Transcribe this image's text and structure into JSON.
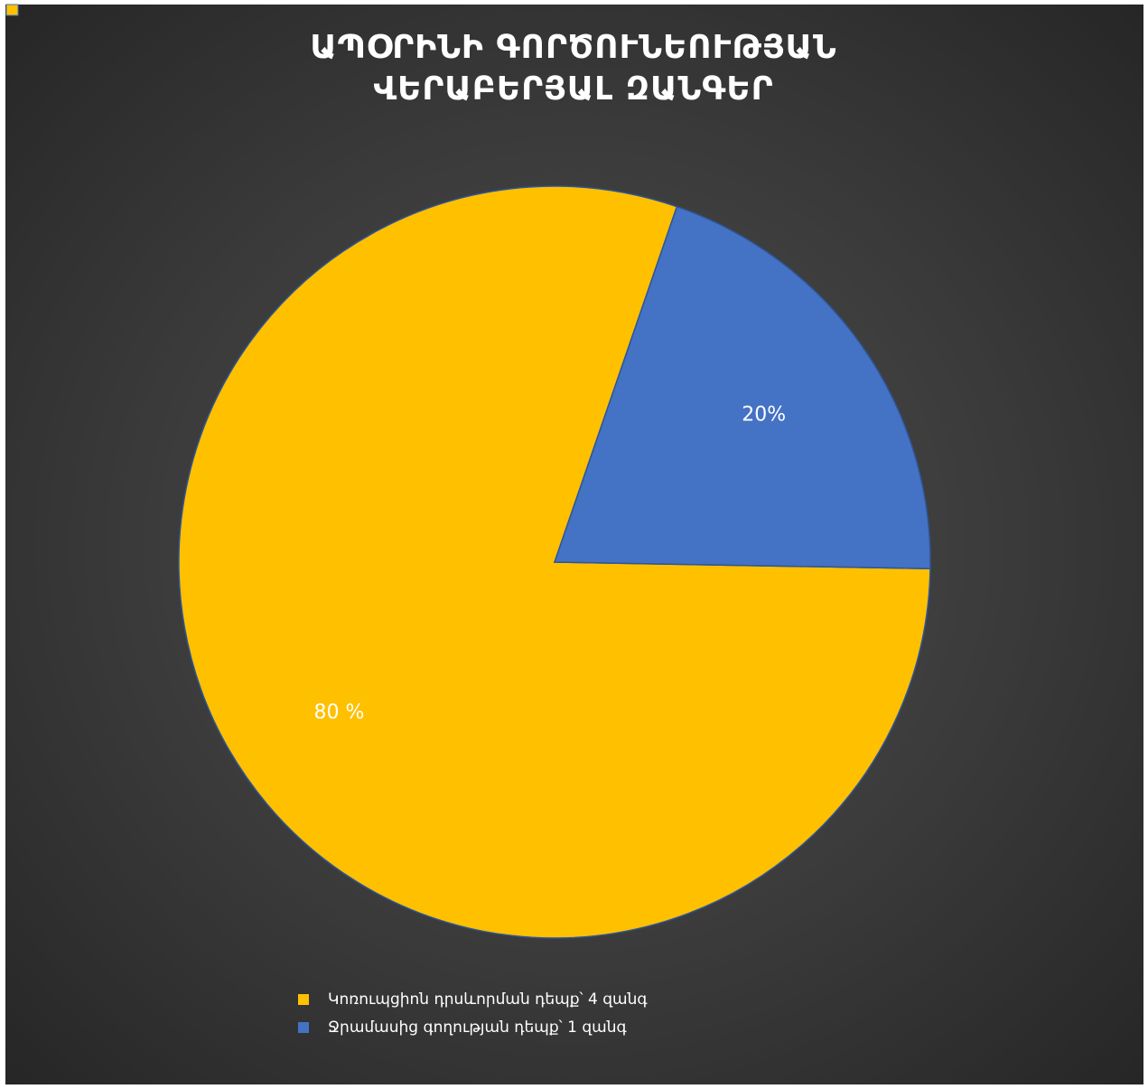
{
  "chart_data": {
    "type": "pie",
    "title": "ԱՊՕՐԻՆԻ ԳՈՐԾՈՒՆԵՈՒԹՅԱՆ ՎԵՐԱԲԵՐՅԱԼ ԶԱՆԳԵՐ",
    "series": [
      {
        "name": "Կոռուպցիոն դրսևորման դեպք՝ 4 զանգ",
        "color": "#ffc000",
        "values": [
          80
        ],
        "value_labels": [
          "80 %"
        ]
      },
      {
        "name": "Ջրամասից գողության դեպք՝ 1 զանգ",
        "color": "#4472c4",
        "values": [
          20
        ],
        "value_labels": [
          "20%"
        ]
      }
    ],
    "legend": "bottom"
  }
}
